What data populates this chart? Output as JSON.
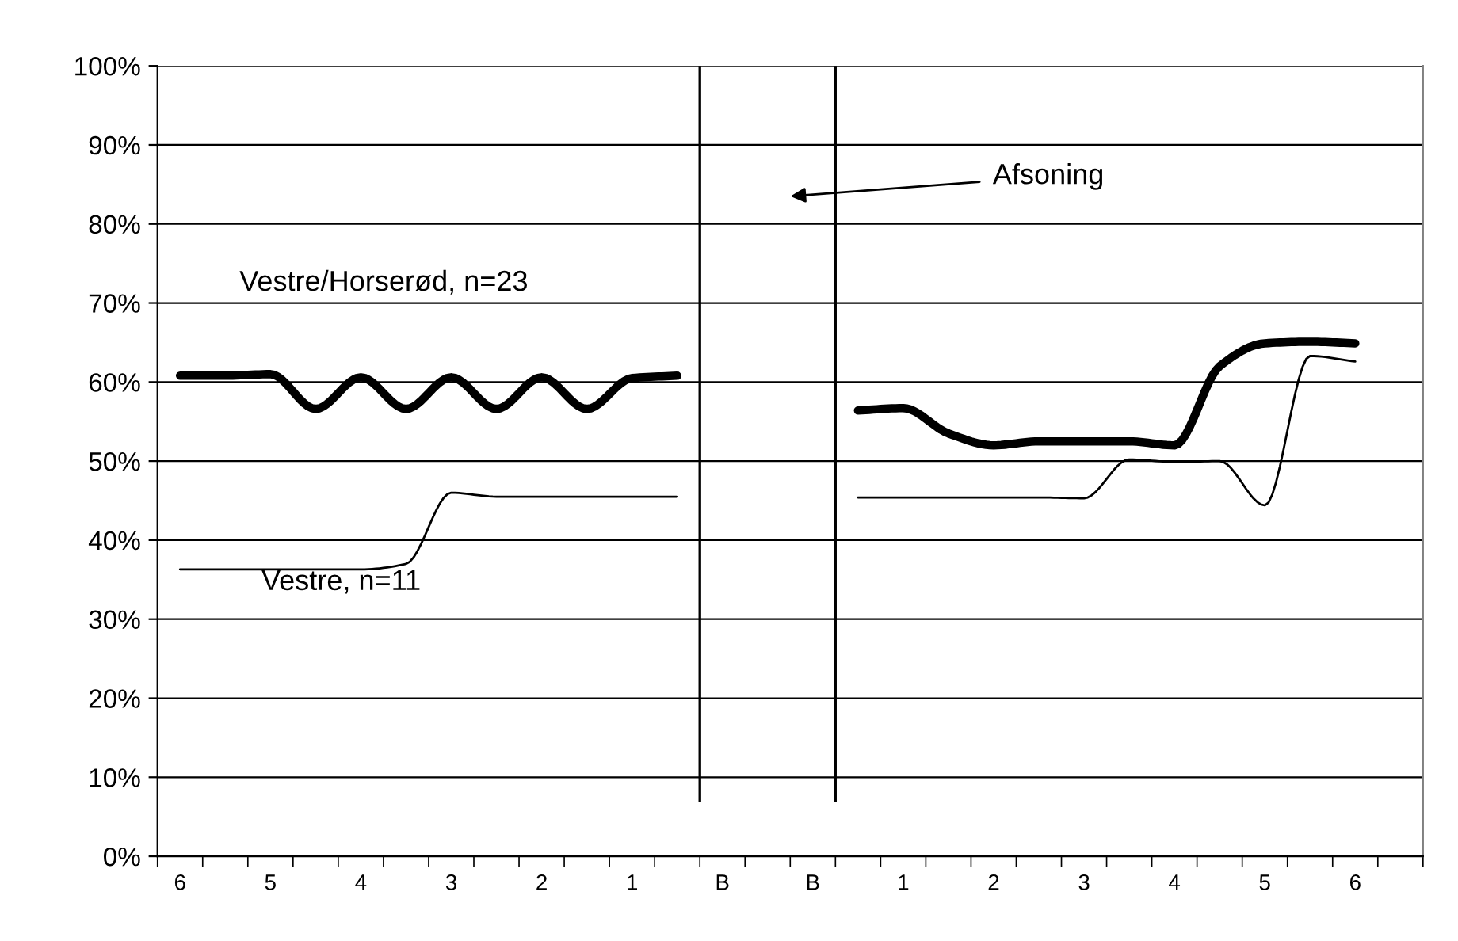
{
  "chart_data": {
    "type": "line",
    "categories": [
      "6",
      null,
      "5",
      null,
      "4",
      null,
      "3",
      null,
      "2",
      null,
      "1",
      null,
      "B",
      null,
      "B",
      null,
      "1",
      null,
      "2",
      null,
      "3",
      null,
      "4",
      null,
      "5",
      null,
      "6",
      null
    ],
    "series": [
      {
        "name": "Vestre/Horserød, n=23",
        "color": "#000000",
        "values": [
          60.8,
          60.8,
          61.0,
          56.6,
          60.6,
          56.6,
          60.6,
          56.6,
          60.6,
          56.6,
          60.5,
          60.8,
          null,
          null,
          null,
          56.4,
          56.7,
          53.5,
          52.0,
          52.5,
          52.5,
          52.5,
          52.0,
          62.0,
          64.9,
          65.1,
          64.9,
          null
        ]
      },
      {
        "name": "Vestre, n=11",
        "color": "#000000",
        "values": [
          36.3,
          36.3,
          36.3,
          36.3,
          36.3,
          37.0,
          46.0,
          45.5,
          45.5,
          45.5,
          45.5,
          45.5,
          null,
          null,
          null,
          45.4,
          45.4,
          45.4,
          45.4,
          45.4,
          45.3,
          50.2,
          49.9,
          50.0,
          44.4,
          63.3,
          62.6,
          null
        ]
      }
    ],
    "ylim": [
      0,
      100
    ],
    "yticks": [
      {
        "value": 0,
        "label": "0%"
      },
      {
        "value": 10,
        "label": "10%"
      },
      {
        "value": 20,
        "label": "20%"
      },
      {
        "value": 30,
        "label": "30%"
      },
      {
        "value": 40,
        "label": "40%"
      },
      {
        "value": 50,
        "label": "50%"
      },
      {
        "value": 60,
        "label": "60%"
      },
      {
        "value": 70,
        "label": "70%"
      },
      {
        "value": 80,
        "label": "80%"
      },
      {
        "value": 90,
        "label": "90%"
      },
      {
        "value": 100,
        "label": "100%"
      }
    ],
    "grid": "y",
    "marker": "none",
    "line_style": "solid",
    "annotations": [
      "Afsoning"
    ]
  }
}
